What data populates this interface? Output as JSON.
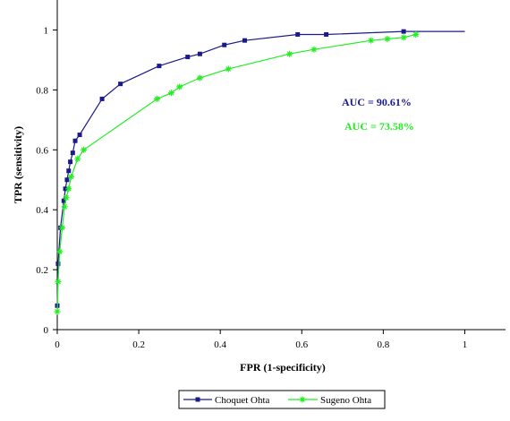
{
  "chart_data": {
    "type": "line",
    "title": "",
    "xlabel": "FPR (1-specificity)",
    "ylabel": "TPR (sensitivity)",
    "xlim": [
      0,
      1.1
    ],
    "ylim": [
      0,
      1.1
    ],
    "xticks": [
      0,
      0.2,
      0.4,
      0.6,
      0.8,
      1
    ],
    "xtick_labels": [
      "0",
      "0.2",
      "0.4",
      "0.6",
      "0.8",
      "1"
    ],
    "yticks": [
      0,
      0.2,
      0.4,
      0.6,
      0.8,
      1
    ],
    "ytick_labels": [
      "0",
      "0.2",
      "0.4",
      "0.6",
      "0.8",
      "1"
    ],
    "grid": false,
    "legend_position": "bottom-center",
    "series": [
      {
        "name": "Choquet Ohta",
        "color": "#1a1a8c",
        "marker": "square",
        "points": [
          [
            0,
            0.08
          ],
          [
            0.002,
            0.22
          ],
          [
            0.008,
            0.34
          ],
          [
            0.016,
            0.43
          ],
          [
            0.02,
            0.47
          ],
          [
            0.024,
            0.5
          ],
          [
            0.028,
            0.53
          ],
          [
            0.032,
            0.56
          ],
          [
            0.038,
            0.59
          ],
          [
            0.044,
            0.63
          ],
          [
            0.055,
            0.65
          ],
          [
            0.11,
            0.77
          ],
          [
            0.155,
            0.82
          ],
          [
            0.25,
            0.88
          ],
          [
            0.32,
            0.91
          ],
          [
            0.35,
            0.92
          ],
          [
            0.41,
            0.95
          ],
          [
            0.46,
            0.965
          ],
          [
            0.59,
            0.985
          ],
          [
            0.66,
            0.985
          ],
          [
            0.85,
            0.995
          ],
          [
            1.0,
            0.995
          ]
        ]
      },
      {
        "name": "Sugeno Ohta",
        "color": "#22ee22",
        "marker": "star",
        "points": [
          [
            0,
            0.06
          ],
          [
            0.002,
            0.16
          ],
          [
            0.006,
            0.26
          ],
          [
            0.012,
            0.34
          ],
          [
            0.018,
            0.41
          ],
          [
            0.022,
            0.44
          ],
          [
            0.028,
            0.47
          ],
          [
            0.034,
            0.51
          ],
          [
            0.05,
            0.57
          ],
          [
            0.065,
            0.6
          ],
          [
            0.245,
            0.77
          ],
          [
            0.28,
            0.79
          ],
          [
            0.3,
            0.81
          ],
          [
            0.35,
            0.84
          ],
          [
            0.42,
            0.87
          ],
          [
            0.57,
            0.92
          ],
          [
            0.63,
            0.935
          ],
          [
            0.77,
            0.965
          ],
          [
            0.81,
            0.97
          ],
          [
            0.85,
            0.975
          ],
          [
            0.88,
            0.985
          ]
        ]
      }
    ],
    "annotations": [
      {
        "text": "AUC = 90.61%",
        "color": "#1a1a8c"
      },
      {
        "text": "AUC = 73.58%",
        "color": "#22ee22"
      }
    ]
  }
}
